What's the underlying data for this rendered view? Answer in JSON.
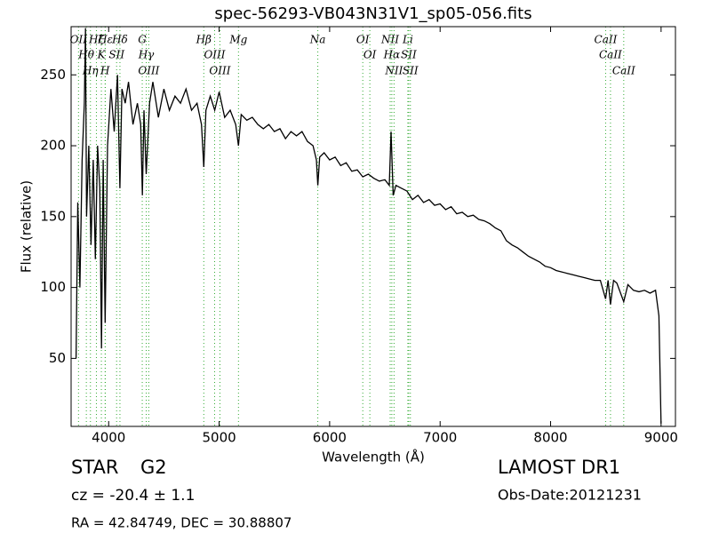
{
  "chart_data": {
    "type": "line",
    "title": "spec-56293-VB043N31V1_sp05-056.fits",
    "x_label": "Wavelength (Å)",
    "y_label": "Flux (relative)",
    "xlim": [
      3660,
      9130
    ],
    "ylim": [
      2,
      284
    ],
    "xticks": [
      4000,
      5000,
      6000,
      7000,
      8000,
      9000
    ],
    "yticks": [
      50,
      100,
      150,
      200,
      250
    ],
    "color": "#000000",
    "line_color": "#33aa33",
    "x": [
      3705,
      3720,
      3740,
      3760,
      3780,
      3790,
      3800,
      3820,
      3840,
      3860,
      3880,
      3900,
      3920,
      3935,
      3950,
      3968,
      3990,
      4020,
      4050,
      4080,
      4102,
      4120,
      4150,
      4180,
      4220,
      4260,
      4290,
      4305,
      4320,
      4340,
      4370,
      4400,
      4450,
      4500,
      4550,
      4600,
      4650,
      4700,
      4750,
      4800,
      4840,
      4861,
      4880,
      4920,
      4960,
      5000,
      5050,
      5100,
      5150,
      5175,
      5200,
      5250,
      5300,
      5350,
      5400,
      5450,
      5500,
      5550,
      5600,
      5650,
      5700,
      5750,
      5800,
      5850,
      5880,
      5893,
      5910,
      5950,
      6000,
      6050,
      6100,
      6150,
      6200,
      6250,
      6300,
      6350,
      6400,
      6450,
      6500,
      6540,
      6556,
      6575,
      6600,
      6650,
      6700,
      6750,
      6800,
      6850,
      6900,
      6950,
      7000,
      7050,
      7100,
      7150,
      7200,
      7250,
      7300,
      7350,
      7400,
      7450,
      7500,
      7550,
      7600,
      7650,
      7700,
      7750,
      7800,
      7850,
      7900,
      7950,
      8000,
      8050,
      8100,
      8150,
      8200,
      8250,
      8300,
      8350,
      8400,
      8450,
      8498,
      8520,
      8542,
      8570,
      8600,
      8662,
      8700,
      8750,
      8800,
      8850,
      8900,
      8950,
      8980,
      9000
    ],
    "values": [
      50,
      160,
      100,
      190,
      230,
      283,
      150,
      200,
      130,
      190,
      120,
      200,
      170,
      57,
      190,
      75,
      200,
      240,
      210,
      250,
      170,
      240,
      230,
      245,
      215,
      230,
      215,
      165,
      225,
      180,
      230,
      245,
      220,
      240,
      225,
      235,
      230,
      240,
      225,
      230,
      215,
      185,
      225,
      235,
      225,
      238,
      220,
      225,
      215,
      200,
      222,
      218,
      220,
      215,
      212,
      215,
      210,
      212,
      205,
      210,
      207,
      210,
      203,
      200,
      190,
      172,
      192,
      195,
      190,
      192,
      186,
      188,
      182,
      183,
      178,
      180,
      177,
      175,
      176,
      172,
      210,
      165,
      172,
      170,
      168,
      162,
      165,
      160,
      162,
      158,
      159,
      155,
      157,
      152,
      153,
      150,
      151,
      148,
      147,
      145,
      142,
      140,
      133,
      130,
      128,
      125,
      122,
      120,
      118,
      115,
      114,
      112,
      111,
      110,
      109,
      108,
      107,
      106,
      105,
      105,
      92,
      105,
      88,
      105,
      103,
      90,
      102,
      98,
      97,
      98,
      96,
      98,
      80,
      4
    ],
    "lines": [
      {
        "label": "OII",
        "x": 3727
      },
      {
        "label": "Hθ",
        "x": 3798
      },
      {
        "label": "Hη",
        "x": 3835
      },
      {
        "label": "Hζ",
        "x": 3889
      },
      {
        "label": "K",
        "x": 3934
      },
      {
        "label": "H",
        "x": 3968
      },
      {
        "label": "Hε",
        "x": 3970
      },
      {
        "label": "SII",
        "x": 4072
      },
      {
        "label": "Hδ",
        "x": 4102
      },
      {
        "label": "G",
        "x": 4304
      },
      {
        "label": "Hγ",
        "x": 4340
      },
      {
        "label": "OIII",
        "x": 4363
      },
      {
        "label": "Hβ",
        "x": 4861
      },
      {
        "label": "OIII",
        "x": 4959
      },
      {
        "label": "OIII",
        "x": 5007
      },
      {
        "label": "Mg",
        "x": 5175
      },
      {
        "label": "Na",
        "x": 5893
      },
      {
        "label": "OI",
        "x": 6300
      },
      {
        "label": "OI",
        "x": 6364
      },
      {
        "label": "NII",
        "x": 6548
      },
      {
        "label": "Hα",
        "x": 6563
      },
      {
        "label": "NII",
        "x": 6583
      },
      {
        "label": "Li",
        "x": 6708
      },
      {
        "label": "SII",
        "x": 6716
      },
      {
        "label": "SII",
        "x": 6731
      },
      {
        "label": "CaII",
        "x": 8498
      },
      {
        "label": "CaII",
        "x": 8542
      },
      {
        "label": "CaII",
        "x": 8662
      }
    ],
    "info": {
      "class": "STAR",
      "subclass": "G2",
      "cz": "cz = -20.4 ± 1.1",
      "coords": "RA = 42.84749, DEC = 30.88807",
      "survey": "LAMOST DR1",
      "obs_date": "Obs-Date:20121231"
    }
  }
}
